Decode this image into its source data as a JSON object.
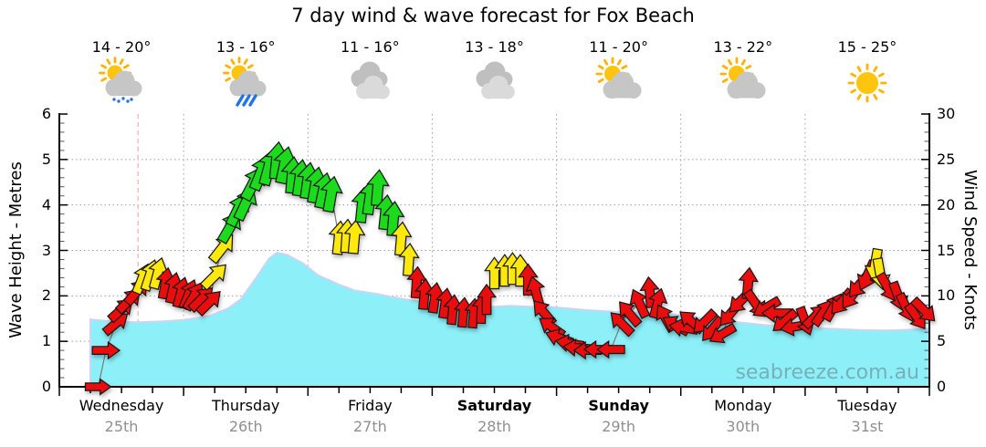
{
  "title": "7 day wind & wave forecast for Fox Beach",
  "watermark": "seabreeze.com.au",
  "days": [
    {
      "name": "Wednesday",
      "date": "25th",
      "temp": "14 - 20°",
      "icon": "partly-cloudy-drizzle",
      "weekend": false
    },
    {
      "name": "Thursday",
      "date": "26th",
      "temp": "13 - 16°",
      "icon": "partly-cloudy-rain",
      "weekend": false
    },
    {
      "name": "Friday",
      "date": "27th",
      "temp": "11 - 16°",
      "icon": "cloudy",
      "weekend": false
    },
    {
      "name": "Saturday",
      "date": "28th",
      "temp": "13 - 18°",
      "icon": "cloudy",
      "weekend": true
    },
    {
      "name": "Sunday",
      "date": "29th",
      "temp": "11 - 20°",
      "icon": "partly-cloudy",
      "weekend": true
    },
    {
      "name": "Monday",
      "date": "30th",
      "temp": "13 - 22°",
      "icon": "partly-cloudy",
      "weekend": false
    },
    {
      "name": "Tuesday",
      "date": "31st",
      "temp": "15 - 25°",
      "icon": "sunny",
      "weekend": false
    }
  ],
  "axes": {
    "left_label": "Wave Height - Metres",
    "left_ticks": [
      0,
      1,
      2,
      3,
      4,
      5,
      6
    ],
    "right_label": "Wind Speed - Knots",
    "right_ticks": [
      0,
      5,
      10,
      15,
      20,
      25,
      30
    ]
  },
  "colors": {
    "wave_fill": "#8DEFF8",
    "wave_edge": "#CBD4F2",
    "arrow_red": "#EA0E0E",
    "arrow_yellow": "#FFE80C",
    "arrow_green": "#1BDB1B",
    "arrow_outline": "#151515",
    "grid": "#9E9E9E",
    "axis": "#000000",
    "now_line": "#FFAFAF",
    "date_text": "#8F8F8F",
    "watermark_text": "#6F9BA4",
    "sun": "#FFC40D",
    "sun_ray": "#FFB300",
    "cloud_dark": "#BFBFBF",
    "cloud_light": "#DADADA",
    "cloud_mid": "#C6C6C6",
    "rain": "#2273E8",
    "connector": "#7A7A7A"
  },
  "chart_data": {
    "type": "area",
    "x_axis": {
      "unit": "hours",
      "range": [
        0,
        168
      ],
      "days": 7,
      "tick_every_hours": 6,
      "grid_at_day_boundaries": true
    },
    "left_axis": {
      "label": "Wave Height - Metres",
      "range": [
        0,
        6
      ]
    },
    "right_axis": {
      "label": "Wind Speed - Knots",
      "range": [
        0,
        30
      ]
    },
    "now_marker_hour": 15.2,
    "grid": true,
    "series": [
      {
        "name": "Wave Height",
        "unit": "m",
        "axis": "left",
        "style": "filled-area",
        "point_format": "[hour, metres]",
        "points": [
          [
            6,
            1.48
          ],
          [
            10,
            1.44
          ],
          [
            15,
            1.42
          ],
          [
            20,
            1.44
          ],
          [
            24,
            1.47
          ],
          [
            29,
            1.56
          ],
          [
            32.5,
            1.72
          ],
          [
            35,
            1.92
          ],
          [
            38,
            2.4
          ],
          [
            40.5,
            2.82
          ],
          [
            42,
            2.95
          ],
          [
            44,
            2.9
          ],
          [
            47,
            2.72
          ],
          [
            50,
            2.45
          ],
          [
            54,
            2.25
          ],
          [
            57,
            2.12
          ],
          [
            61,
            2.05
          ],
          [
            64,
            1.98
          ],
          [
            68,
            1.9
          ],
          [
            72,
            1.83
          ],
          [
            77,
            1.78
          ],
          [
            80,
            1.76
          ],
          [
            84,
            1.76
          ],
          [
            87,
            1.78
          ],
          [
            91,
            1.76
          ],
          [
            95.5,
            1.75
          ],
          [
            101.5,
            1.69
          ],
          [
            107,
            1.65
          ],
          [
            113,
            1.63
          ],
          [
            119,
            1.59
          ],
          [
            125,
            1.49
          ],
          [
            131,
            1.42
          ],
          [
            137,
            1.35
          ],
          [
            142.5,
            1.32
          ],
          [
            148.5,
            1.28
          ],
          [
            154.5,
            1.25
          ],
          [
            160,
            1.24
          ],
          [
            165,
            1.26
          ],
          [
            168,
            1.28
          ]
        ]
      },
      {
        "name": "Wind Speed",
        "unit": "knots",
        "axis": "right",
        "style": "wind-arrows",
        "point_format": "[hour, knots, arrow_rotation_deg(0=up, clockwise), color r|y|g]",
        "points": [
          [
            7.5,
            0,
            90,
            "r"
          ],
          [
            9,
            4,
            90,
            "r"
          ],
          [
            11,
            7,
            50,
            "r"
          ],
          [
            12,
            8.5,
            48,
            "r"
          ],
          [
            13.5,
            9.5,
            45,
            "r"
          ],
          [
            15,
            10.5,
            40,
            "r"
          ],
          [
            16,
            11.9,
            22,
            "y"
          ],
          [
            17.5,
            12.3,
            18,
            "y"
          ],
          [
            19,
            12.5,
            15,
            "y"
          ],
          [
            20.5,
            11.4,
            10,
            "r"
          ],
          [
            22,
            10.9,
            12,
            "r"
          ],
          [
            23.5,
            10.4,
            15,
            "r"
          ],
          [
            25,
            10.2,
            22,
            "r"
          ],
          [
            26,
            10,
            30,
            "r"
          ],
          [
            27.5,
            9.7,
            45,
            "r"
          ],
          [
            29,
            9.3,
            45,
            "r"
          ],
          [
            30,
            12.2,
            45,
            "y"
          ],
          [
            31.5,
            15.3,
            38,
            "y"
          ],
          [
            33,
            17.6,
            30,
            "g"
          ],
          [
            34.5,
            19.5,
            26,
            "g"
          ],
          [
            36,
            20.2,
            25,
            "g"
          ],
          [
            37.5,
            22.4,
            28,
            "g"
          ],
          [
            39,
            23.6,
            22,
            "g"
          ],
          [
            40.5,
            24.2,
            15,
            "g"
          ],
          [
            42,
            24.9,
            6,
            "g"
          ],
          [
            43.5,
            24.4,
            12,
            "g"
          ],
          [
            45,
            23.3,
            5,
            "g"
          ],
          [
            46.5,
            23,
            8,
            "g"
          ],
          [
            48,
            22.7,
            8,
            "g"
          ],
          [
            49.5,
            22.2,
            10,
            "g"
          ],
          [
            51,
            21.6,
            12,
            "g"
          ],
          [
            52.5,
            21.2,
            10,
            "g"
          ],
          [
            54,
            16.4,
            6,
            "y"
          ],
          [
            55.5,
            16.6,
            4,
            "y"
          ],
          [
            57,
            16.5,
            5,
            "y"
          ],
          [
            58.5,
            20,
            6,
            "g"
          ],
          [
            60,
            20.9,
            8,
            "g"
          ],
          [
            61.5,
            21.9,
            5,
            "g"
          ],
          [
            63,
            19.2,
            6,
            "g"
          ],
          [
            64.5,
            18.5,
            5,
            "g"
          ],
          [
            66,
            16.3,
            5,
            "y"
          ],
          [
            67.5,
            14,
            4,
            "y"
          ],
          [
            69,
            11.5,
            4,
            "r"
          ],
          [
            70.5,
            10.2,
            5,
            "r"
          ],
          [
            72.5,
            9.8,
            8,
            "r"
          ],
          [
            74.5,
            9.2,
            8,
            "r"
          ],
          [
            76,
            8.5,
            6,
            "r"
          ],
          [
            78,
            8.2,
            5,
            "r"
          ],
          [
            80,
            8.1,
            5,
            "r"
          ],
          [
            81.5,
            8.6,
            2,
            "r"
          ],
          [
            82.5,
            9.6,
            0,
            "r"
          ],
          [
            84,
            12.5,
            0,
            "y"
          ],
          [
            86,
            12.8,
            0,
            "y"
          ],
          [
            87.5,
            13,
            0,
            "y"
          ],
          [
            89,
            12.8,
            0,
            "y"
          ],
          [
            90.5,
            11.8,
            0,
            "r"
          ],
          [
            92,
            10.5,
            -15,
            "r"
          ],
          [
            93.5,
            8.2,
            -40,
            "r"
          ],
          [
            95,
            6.6,
            -55,
            "r"
          ],
          [
            96.5,
            5.4,
            -70,
            "r"
          ],
          [
            98.5,
            4.8,
            -80,
            "r"
          ],
          [
            100,
            4.3,
            -85,
            "r"
          ],
          [
            102,
            4,
            -90,
            "r"
          ],
          [
            104,
            4.1,
            -90,
            "r"
          ],
          [
            106.5,
            4.1,
            -90,
            "r"
          ],
          [
            108.5,
            7,
            -45,
            "r"
          ],
          [
            110,
            8.1,
            -40,
            "r"
          ],
          [
            112,
            9.2,
            -25,
            "r"
          ],
          [
            114,
            10.4,
            -5,
            "r"
          ],
          [
            115.5,
            9.2,
            15,
            "r"
          ],
          [
            117,
            7.6,
            -30,
            "r"
          ],
          [
            119,
            6.8,
            -60,
            "r"
          ],
          [
            120.5,
            6.5,
            -80,
            "r"
          ],
          [
            122,
            7.2,
            -50,
            "r"
          ],
          [
            124.5,
            7.1,
            -135,
            "r"
          ],
          [
            126,
            6.3,
            -140,
            "r"
          ],
          [
            128,
            5.8,
            -120,
            "r"
          ],
          [
            129.5,
            8,
            -140,
            "r"
          ],
          [
            131.5,
            9.4,
            -135,
            "r"
          ],
          [
            133,
            11.4,
            5,
            "r"
          ],
          [
            134.5,
            9.1,
            145,
            "r"
          ],
          [
            136.5,
            8.7,
            -120,
            "r"
          ],
          [
            138.5,
            8.1,
            -90,
            "r"
          ],
          [
            140,
            7.2,
            -130,
            "r"
          ],
          [
            142,
            6.6,
            -100,
            "r"
          ],
          [
            144,
            7.2,
            160,
            "r"
          ],
          [
            146,
            7.8,
            45,
            "r"
          ],
          [
            147.5,
            8.2,
            35,
            "r"
          ],
          [
            149.5,
            8.8,
            30,
            "r"
          ],
          [
            151,
            9.3,
            -140,
            "r"
          ],
          [
            153,
            10,
            -145,
            "r"
          ],
          [
            154.5,
            11.2,
            -140,
            "r"
          ],
          [
            156,
            12.2,
            -155,
            "r"
          ],
          [
            157.5,
            13.4,
            -170,
            "y"
          ],
          [
            158.5,
            12.4,
            170,
            "y"
          ],
          [
            160,
            10.9,
            150,
            "r"
          ],
          [
            162,
            9.9,
            160,
            "r"
          ],
          [
            163.5,
            8.7,
            155,
            "r"
          ],
          [
            165.5,
            7.7,
            145,
            "r"
          ],
          [
            167,
            8.4,
            135,
            "r"
          ]
        ]
      }
    ]
  }
}
